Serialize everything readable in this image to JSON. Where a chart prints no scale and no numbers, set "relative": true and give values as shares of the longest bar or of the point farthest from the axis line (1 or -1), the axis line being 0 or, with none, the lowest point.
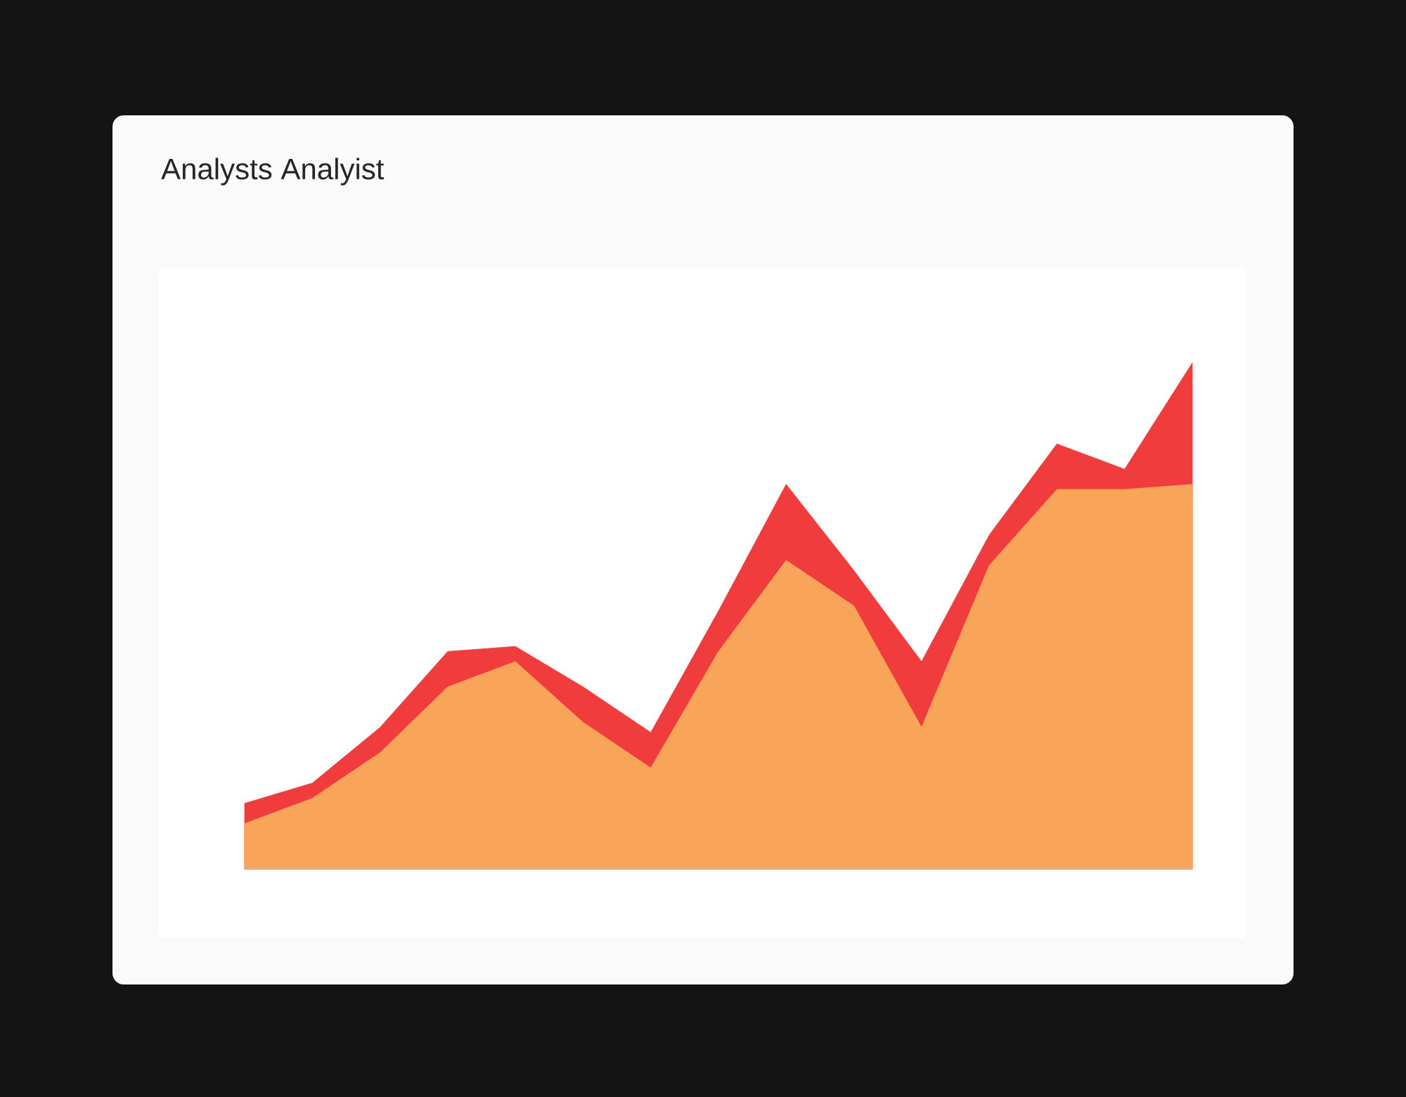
{
  "chart_data": {
    "type": "area",
    "title": "Analysts Analyist",
    "relative": true,
    "categories": [
      null,
      null,
      null,
      null,
      null,
      null,
      null,
      null,
      null,
      null,
      null,
      null,
      null,
      null,
      null
    ],
    "series": [
      {
        "color": "#f03c3c",
        "values": [
          0.13,
          0.17,
          0.28,
          0.43,
          0.44,
          0.36,
          0.27,
          0.51,
          0.76,
          0.59,
          0.41,
          0.66,
          0.84,
          0.79,
          1.0
        ]
      },
      {
        "color": "#f8a55a",
        "values": [
          0.09,
          0.14,
          0.23,
          0.36,
          0.41,
          0.29,
          0.2,
          0.43,
          0.61,
          0.52,
          0.28,
          0.6,
          0.75,
          0.75,
          0.76
        ]
      }
    ]
  }
}
